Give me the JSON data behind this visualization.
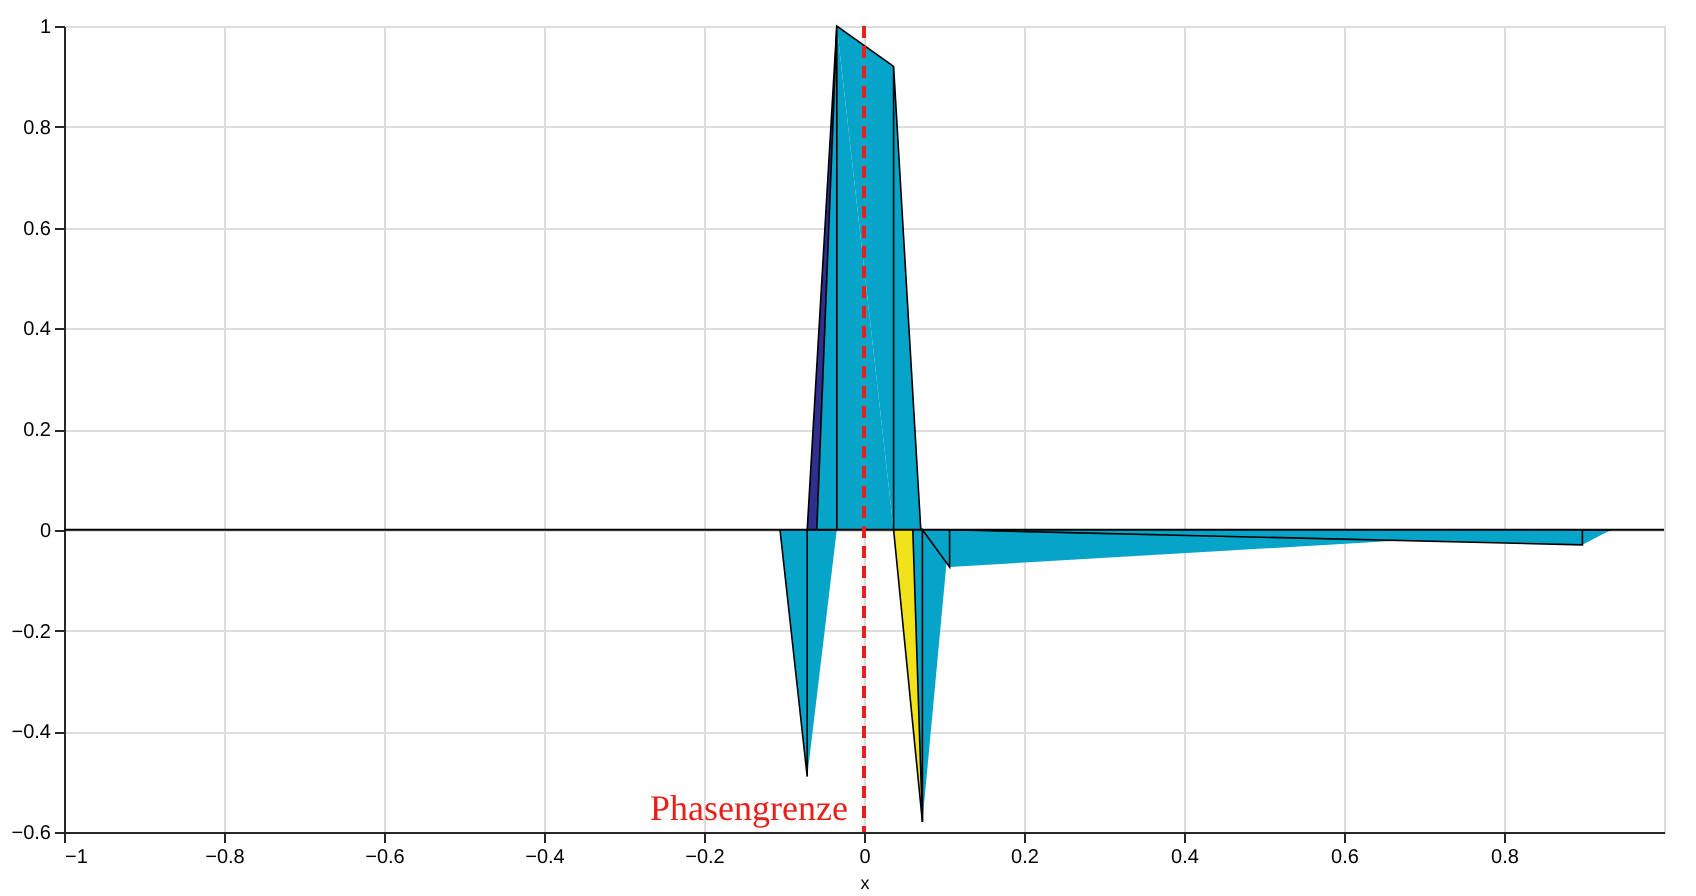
{
  "chart_data": {
    "type": "area",
    "xlabel": "x",
    "xlim": [
      -1,
      1
    ],
    "xticks": [
      -1,
      -0.8,
      -0.6,
      -0.4,
      -0.2,
      0,
      0.2,
      0.4,
      0.6,
      0.8
    ],
    "ylim": [
      -0.6,
      1
    ],
    "yticks": [
      -0.6,
      -0.4,
      -0.2,
      0,
      0.2,
      0.4,
      0.6,
      0.8,
      1
    ],
    "grid": true,
    "series": [
      {
        "color": "#2e2f8e",
        "x": [
          -0.071,
          -0.034
        ],
        "values": [
          0,
          1
        ]
      },
      {
        "color": "#06a4c8",
        "x": [
          -0.059,
          -0.034,
          0.037,
          0.071
        ],
        "values": [
          0,
          1,
          0.92,
          0
        ]
      },
      {
        "color": "#06a4c8",
        "x": [
          -0.105,
          -0.071,
          -0.034
        ],
        "values": [
          0,
          -0.49,
          0
        ]
      },
      {
        "color": "#f2e21a",
        "x": [
          0.037,
          0.073
        ],
        "values": [
          0,
          -0.58
        ]
      },
      {
        "color": "#06a4c8",
        "x": [
          0.061,
          0.073,
          0.107,
          0.898,
          0.934
        ],
        "values": [
          0,
          -0.58,
          -0.074,
          -0.03,
          0
        ]
      }
    ],
    "ref_lines": [
      {
        "axis": "y",
        "value": 0,
        "color": "#000000",
        "line_style": "solid"
      },
      {
        "axis": "x",
        "value": 0,
        "label": "Phasengrenze",
        "color": "#e8201a",
        "line_style": "dashed"
      }
    ]
  }
}
